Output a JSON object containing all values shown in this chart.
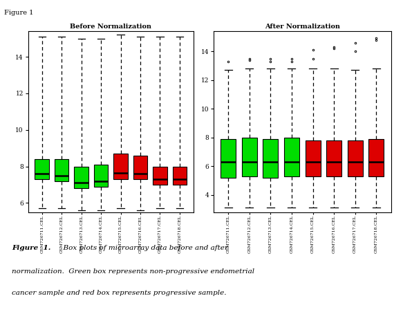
{
  "title_left": "Before Normalization",
  "title_right": "After Normalization",
  "figure_label": "Figure 1",
  "sample_names": [
    "GSM726711.CEL",
    "GSM726712.CEL",
    "GSM726713.CEL",
    "GSM726714.CEL",
    "GSM726715.CEL",
    "GSM726716.CEL",
    "GSM726717.CEL",
    "GSM726718.CEL"
  ],
  "colors": [
    "#00dd00",
    "#00dd00",
    "#00dd00",
    "#00dd00",
    "#dd0000",
    "#dd0000",
    "#dd0000",
    "#dd0000"
  ],
  "before": {
    "whislo": [
      5.7,
      5.7,
      5.6,
      5.6,
      5.7,
      5.6,
      5.7,
      5.7
    ],
    "q1": [
      7.3,
      7.2,
      6.8,
      6.9,
      7.3,
      7.3,
      7.0,
      7.0
    ],
    "med": [
      7.6,
      7.5,
      7.1,
      7.2,
      7.65,
      7.6,
      7.3,
      7.3
    ],
    "q3": [
      8.4,
      8.4,
      8.0,
      8.1,
      8.7,
      8.6,
      8.0,
      8.0
    ],
    "whishi": [
      15.1,
      15.1,
      15.0,
      15.0,
      15.2,
      15.1,
      15.1,
      15.1
    ]
  },
  "after": {
    "whislo": [
      3.1,
      3.1,
      3.1,
      3.1,
      3.1,
      3.1,
      3.1,
      3.1
    ],
    "q1": [
      5.2,
      5.3,
      5.2,
      5.3,
      5.3,
      5.3,
      5.3,
      5.3
    ],
    "med": [
      6.3,
      6.3,
      6.3,
      6.3,
      6.3,
      6.3,
      6.3,
      6.3
    ],
    "q3": [
      7.9,
      8.0,
      7.9,
      8.0,
      7.8,
      7.8,
      7.8,
      7.9
    ],
    "whishi": [
      12.7,
      12.8,
      12.8,
      12.8,
      12.8,
      12.8,
      12.7,
      12.8
    ],
    "fliers_y": [
      13.3,
      13.5,
      13.4,
      13.3,
      13.5,
      13.3,
      13.5,
      13.5,
      14.1,
      14.3,
      14.2,
      14.0,
      14.6,
      14.9,
      14.8
    ],
    "fliers_x": [
      0,
      1,
      1,
      2,
      2,
      3,
      3,
      4,
      4,
      5,
      5,
      6,
      6,
      7,
      7
    ]
  },
  "before_ylim": [
    5.5,
    15.4
  ],
  "after_ylim": [
    2.8,
    15.4
  ],
  "before_yticks": [
    6,
    8,
    10,
    12,
    14
  ],
  "after_yticks": [
    4,
    6,
    8,
    10,
    12,
    14
  ],
  "bg_color": "#ffffff"
}
